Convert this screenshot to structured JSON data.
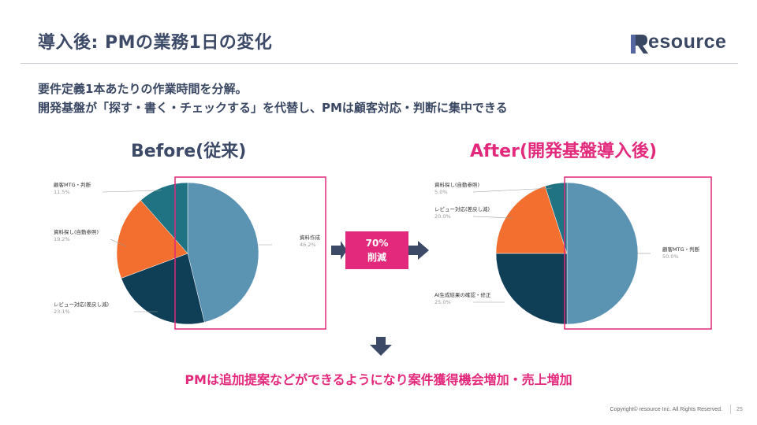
{
  "title": "導入後: PMの業務1日の変化",
  "logo": {
    "text": "esource"
  },
  "lead": {
    "line1": "要件定義1本あたりの作業時間を分解。",
    "line2": "開発基盤が「探す・書く・チェックする」を代替し、PMは顧客対応・判断に集中できる"
  },
  "before_title": "Before(従来)",
  "after_title": "After(開発基盤導入後)",
  "badge": {
    "line1": "70%",
    "line2": "削減"
  },
  "conclusion": "PMは追加提案などができるようになり案件獲得機会増加・売上増加",
  "footer": {
    "copyright": "Copyright© resource Inc. All Rights Reserved.",
    "page": "25"
  },
  "colors": {
    "steel_blue": "#5b93b2",
    "navy": "#0f3e57",
    "orange": "#f26f2f",
    "teal": "#1f7383",
    "pink": "#e3297c",
    "arrow": "#3c4a68"
  },
  "chart_data": [
    {
      "type": "pie",
      "title": "Before(従来)",
      "slices": [
        {
          "label": "資料作成",
          "pct": "46.2%",
          "value": 46.2,
          "color": "#5b93b2"
        },
        {
          "label": "レビュー対応(差戻し減)",
          "pct": "23.1%",
          "value": 23.1,
          "color": "#0f3e57"
        },
        {
          "label": "資料探し(自動参照)",
          "pct": "19.2%",
          "value": 19.2,
          "color": "#f26f2f"
        },
        {
          "label": "顧客MTG・判断",
          "pct": "11.5%",
          "value": 11.5,
          "color": "#1f7383"
        }
      ]
    },
    {
      "type": "pie",
      "title": "After(開発基盤導入後)",
      "slices": [
        {
          "label": "顧客MTG・判断",
          "pct": "50.0%",
          "value": 50.0,
          "color": "#5b93b2"
        },
        {
          "label": "AI生成結果の確認・修正",
          "pct": "25.0%",
          "value": 25.0,
          "color": "#0f3e57"
        },
        {
          "label": "レビュー対応(差戻し減)",
          "pct": "20.0%",
          "value": 20.0,
          "color": "#f26f2f"
        },
        {
          "label": "資料探し(自動参照)",
          "pct": "5.0%",
          "value": 5.0,
          "color": "#1f7383"
        }
      ]
    }
  ]
}
